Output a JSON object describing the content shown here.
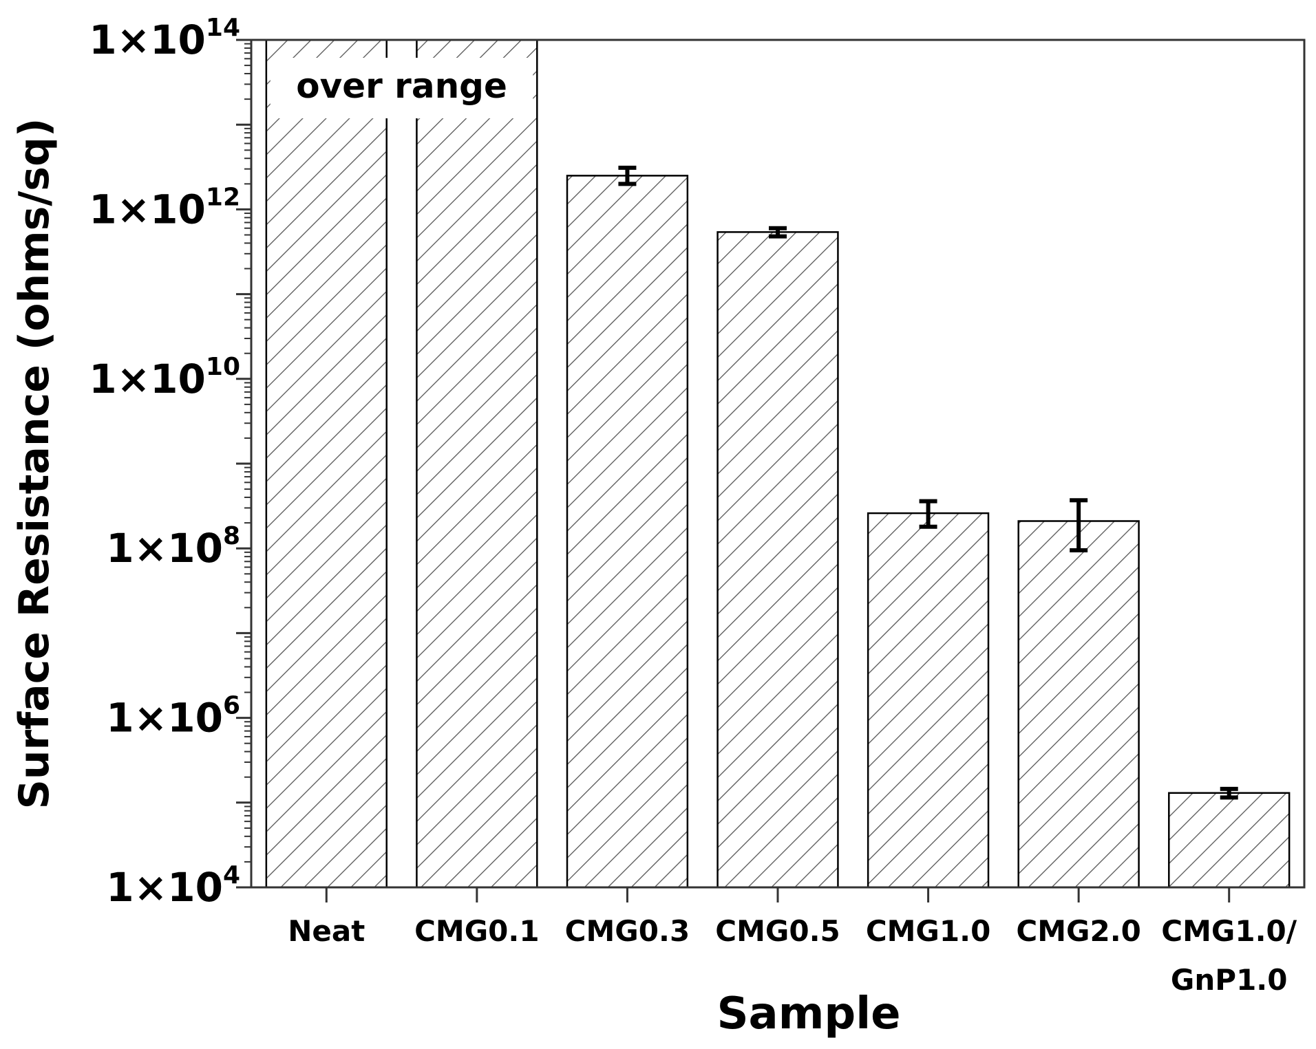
{
  "chart_data": {
    "type": "bar",
    "categories": [
      [
        "Neat"
      ],
      [
        "CMG0.1"
      ],
      [
        "CMG0.3"
      ],
      [
        "CMG0.5"
      ],
      [
        "CMG1.0"
      ],
      [
        "CMG2.0"
      ],
      [
        "CMG1.0/",
        "GnP1.0"
      ]
    ],
    "values": [
      100000000000000,
      100000000000000,
      2500000000000,
      540000000000,
      260000000,
      210000000,
      130000
    ],
    "error_low": [
      null,
      null,
      2000000000000,
      480000000000,
      180000000,
      95000000,
      115000
    ],
    "error_high": [
      null,
      null,
      3100000000000,
      600000000000,
      360000000,
      370000000,
      145000
    ],
    "over_range": [
      true,
      true,
      false,
      false,
      false,
      false,
      false
    ],
    "annotation": "over range",
    "xlabel": "Sample",
    "ylabel": "Surface Resistance (ohms/sq)",
    "y_scale": "log",
    "ylim": [
      10000,
      100000000000000
    ],
    "y_ticks": [
      {
        "mantissa": "1×10",
        "exponent": "4",
        "value": 10000
      },
      {
        "mantissa": "1×10",
        "exponent": "6",
        "value": 1000000
      },
      {
        "mantissa": "1×10",
        "exponent": "8",
        "value": 100000000
      },
      {
        "mantissa": "1×10",
        "exponent": "10",
        "value": 10000000000
      },
      {
        "mantissa": "1×10",
        "exponent": "12",
        "value": 1000000000000
      },
      {
        "mantissa": "1×10",
        "exponent": "14",
        "value": 100000000000000
      }
    ],
    "grid": false,
    "bar_fill": "hatched",
    "colors": {
      "bar_edge": "#000000",
      "hatch": "#555555",
      "background": "#ffffff"
    }
  }
}
